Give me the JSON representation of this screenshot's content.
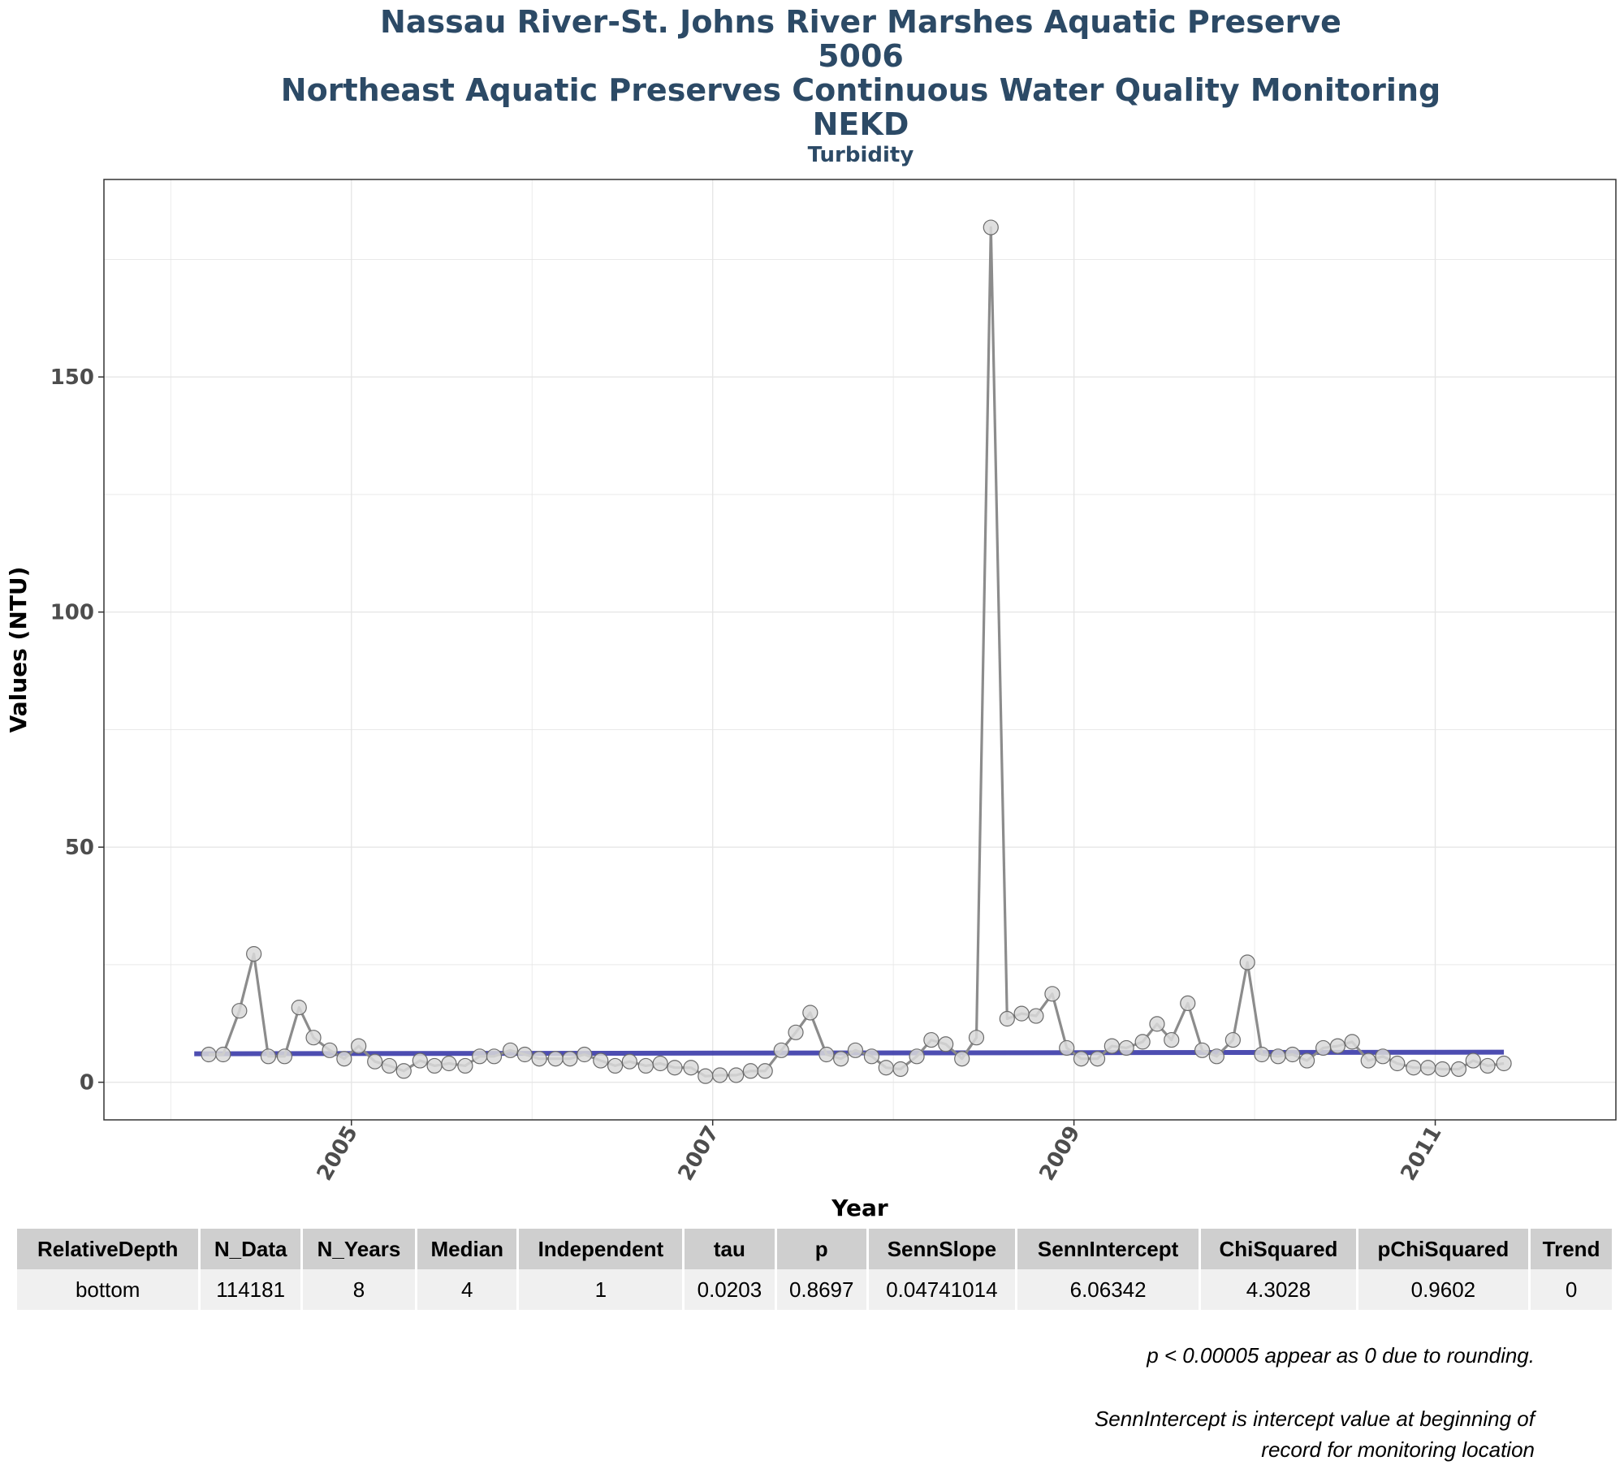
{
  "titles": {
    "line1": "Nassau River-St. Johns River Marshes Aquatic Preserve",
    "line2": "5006",
    "line3": "Northeast Aquatic Preserves Continuous Water Quality Monitoring",
    "line4": "NEKD",
    "subtitle": "Turbidity"
  },
  "chart_data": {
    "type": "line",
    "title": "Nassau River-St. Johns River Marshes Aquatic Preserve / 5006 / Northeast Aquatic Preserves Continuous Water Quality Monitoring / NEKD",
    "subtitle": "Turbidity",
    "xlabel": "Year",
    "ylabel": "Values (NTU)",
    "x_ticks": [
      "2005",
      "2007",
      "2009",
      "2011"
    ],
    "y_ticks": [
      0,
      50,
      100,
      150
    ],
    "xlim": [
      2003.63,
      2012.0
    ],
    "ylim": [
      -8,
      192
    ],
    "grid": true,
    "colors": {
      "series": "#8c8c8c",
      "trend": "#3a3aa8",
      "points": "#d9d9d9"
    },
    "series": [
      {
        "values": [
          [
            2004.21,
            5.9
          ],
          [
            2004.29,
            5.9
          ],
          [
            2004.38,
            15.2
          ],
          [
            2004.46,
            27.3
          ],
          [
            2004.54,
            5.5
          ],
          [
            2004.63,
            5.5
          ],
          [
            2004.71,
            15.9
          ],
          [
            2004.79,
            9.5
          ],
          [
            2004.88,
            6.8
          ],
          [
            2004.96,
            5.0
          ],
          [
            2005.04,
            7.7
          ],
          [
            2005.13,
            4.4
          ],
          [
            2005.21,
            3.5
          ],
          [
            2005.29,
            2.4
          ],
          [
            2005.38,
            4.6
          ],
          [
            2005.46,
            3.5
          ],
          [
            2005.54,
            4.0
          ],
          [
            2005.63,
            3.5
          ],
          [
            2005.71,
            5.5
          ],
          [
            2005.79,
            5.5
          ],
          [
            2005.88,
            6.8
          ],
          [
            2005.96,
            5.9
          ],
          [
            2006.04,
            5.0
          ],
          [
            2006.13,
            5.0
          ],
          [
            2006.21,
            5.0
          ],
          [
            2006.29,
            5.9
          ],
          [
            2006.38,
            4.6
          ],
          [
            2006.46,
            3.5
          ],
          [
            2006.54,
            4.4
          ],
          [
            2006.63,
            3.5
          ],
          [
            2006.71,
            4.0
          ],
          [
            2006.79,
            3.1
          ],
          [
            2006.88,
            3.1
          ],
          [
            2006.96,
            1.3
          ],
          [
            2007.04,
            1.5
          ],
          [
            2007.13,
            1.5
          ],
          [
            2007.21,
            2.4
          ],
          [
            2007.29,
            2.4
          ],
          [
            2007.38,
            6.8
          ],
          [
            2007.46,
            10.6
          ],
          [
            2007.54,
            14.8
          ],
          [
            2007.63,
            5.9
          ],
          [
            2007.71,
            5.0
          ],
          [
            2007.79,
            6.8
          ],
          [
            2007.88,
            5.5
          ],
          [
            2007.96,
            3.1
          ],
          [
            2008.04,
            2.8
          ],
          [
            2008.13,
            5.5
          ],
          [
            2008.21,
            9.0
          ],
          [
            2008.29,
            8.1
          ],
          [
            2008.38,
            5.0
          ],
          [
            2008.46,
            9.5
          ],
          [
            2008.54,
            181.8
          ],
          [
            2008.63,
            13.5
          ],
          [
            2008.71,
            14.6
          ],
          [
            2008.79,
            14.1
          ],
          [
            2008.88,
            18.8
          ],
          [
            2008.96,
            7.3
          ],
          [
            2009.04,
            5.0
          ],
          [
            2009.13,
            5.0
          ],
          [
            2009.21,
            7.7
          ],
          [
            2009.29,
            7.3
          ],
          [
            2009.38,
            8.6
          ],
          [
            2009.46,
            12.4
          ],
          [
            2009.54,
            9.0
          ],
          [
            2009.63,
            16.8
          ],
          [
            2009.71,
            6.8
          ],
          [
            2009.79,
            5.5
          ],
          [
            2009.88,
            9.0
          ],
          [
            2009.96,
            25.5
          ],
          [
            2010.04,
            5.9
          ],
          [
            2010.13,
            5.5
          ],
          [
            2010.21,
            5.9
          ],
          [
            2010.29,
            4.6
          ],
          [
            2010.38,
            7.3
          ],
          [
            2010.46,
            7.7
          ],
          [
            2010.54,
            8.6
          ],
          [
            2010.63,
            4.6
          ],
          [
            2010.71,
            5.5
          ],
          [
            2010.79,
            4.0
          ],
          [
            2010.88,
            3.1
          ],
          [
            2010.96,
            3.1
          ],
          [
            2011.04,
            2.8
          ],
          [
            2011.13,
            2.8
          ],
          [
            2011.21,
            4.6
          ],
          [
            2011.29,
            3.5
          ],
          [
            2011.38,
            4.0
          ]
        ]
      }
    ],
    "trend_line": {
      "x": [
        2004.13,
        2011.38
      ],
      "y": [
        6.06,
        6.4
      ]
    }
  },
  "table": {
    "headers": [
      "RelativeDepth",
      "N_Data",
      "N_Years",
      "Median",
      "Independent",
      "tau",
      "p",
      "SennSlope",
      "SennIntercept",
      "ChiSquared",
      "pChiSquared",
      "Trend"
    ],
    "rows": [
      [
        "bottom",
        "114181",
        "8",
        "4",
        "1",
        "0.0203",
        "0.8697",
        "0.04741014",
        "6.06342",
        "4.3028",
        "0.9602",
        "0"
      ]
    ]
  },
  "notes": {
    "rounding": "p < 0.00005 appear as 0 due to rounding.",
    "intercept_line1": "SennIntercept is intercept value at beginning of",
    "intercept_line2": "record for monitoring location"
  }
}
